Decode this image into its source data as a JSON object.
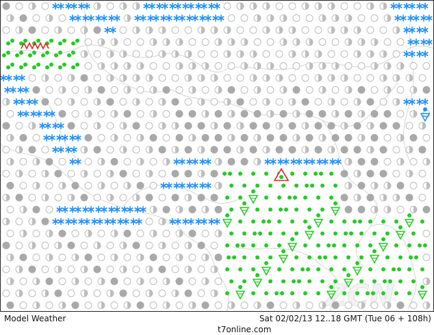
{
  "footer": {
    "product": "Model Weather",
    "run_info": "Sat 02/02/13  12..18 GMT (Tue 06 + 108h)",
    "site": "t7online.com"
  },
  "watermark": "ZCN",
  "colors": {
    "snow": "#1e90ff",
    "rain": "#22cc22",
    "cloud_dark": "#a9a9a9",
    "cloud_light": "#bdbdbd",
    "border_line": "#d4d4d4",
    "thunder": "#dd2222",
    "background": "#ffffff"
  },
  "legend_symbols": [
    "clear-circle",
    "partly-cloudy-half-circle",
    "overcast-filled-circle",
    "snow-asterisk",
    "rain-dot",
    "rain-shower-triangle",
    "snow-shower-triangle",
    "thunderstorm-triangle"
  ]
}
